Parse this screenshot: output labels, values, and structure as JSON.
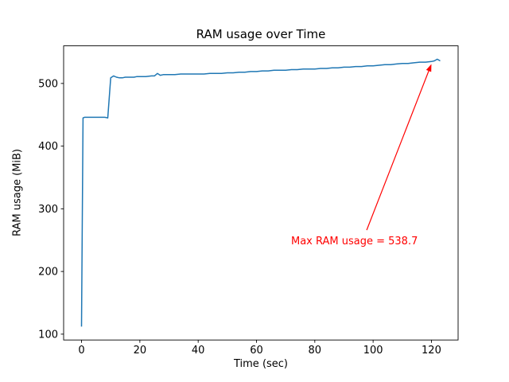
{
  "chart_data": {
    "type": "line",
    "title": "RAM usage over Time",
    "xlabel": "Time (sec)",
    "ylabel": "RAM usage (MiB)",
    "xlim": [
      -6.15,
      129.15
    ],
    "ylim": [
      90.7,
      560
    ],
    "x_ticks": [
      0,
      20,
      40,
      60,
      80,
      100,
      120
    ],
    "y_ticks": [
      100,
      200,
      300,
      400,
      500
    ],
    "grid": false,
    "line_color": "#1f77b4",
    "annotation": {
      "text": "Max RAM usage = 538.7",
      "color": "#ff0000",
      "arrow_from": [
        97.8,
        266
      ],
      "arrow_to": [
        120.0,
        531
      ]
    },
    "series": [
      {
        "name": "RAM usage",
        "points": [
          [
            0,
            112
          ],
          [
            0.5,
            445
          ],
          [
            1,
            446
          ],
          [
            2,
            446
          ],
          [
            3,
            446
          ],
          [
            4,
            446
          ],
          [
            5,
            446
          ],
          [
            6,
            446
          ],
          [
            7,
            446
          ],
          [
            8,
            446
          ],
          [
            9,
            445
          ],
          [
            10,
            509
          ],
          [
            11,
            512
          ],
          [
            12,
            510
          ],
          [
            13,
            509
          ],
          [
            14,
            509
          ],
          [
            15,
            510
          ],
          [
            16,
            510
          ],
          [
            17,
            510
          ],
          [
            18,
            510
          ],
          [
            19,
            511
          ],
          [
            20,
            511
          ],
          [
            22,
            511
          ],
          [
            24,
            512
          ],
          [
            25,
            512
          ],
          [
            26,
            516
          ],
          [
            27,
            513
          ],
          [
            28,
            514
          ],
          [
            30,
            514
          ],
          [
            32,
            514
          ],
          [
            34,
            515
          ],
          [
            36,
            515
          ],
          [
            38,
            515
          ],
          [
            40,
            515
          ],
          [
            42,
            515
          ],
          [
            44,
            516
          ],
          [
            46,
            516
          ],
          [
            48,
            516
          ],
          [
            50,
            517
          ],
          [
            52,
            517
          ],
          [
            54,
            518
          ],
          [
            56,
            518
          ],
          [
            58,
            519
          ],
          [
            60,
            519
          ],
          [
            62,
            520
          ],
          [
            64,
            520
          ],
          [
            66,
            521
          ],
          [
            68,
            521
          ],
          [
            70,
            521
          ],
          [
            72,
            522
          ],
          [
            74,
            522
          ],
          [
            76,
            523
          ],
          [
            78,
            523
          ],
          [
            80,
            523
          ],
          [
            82,
            524
          ],
          [
            84,
            524
          ],
          [
            86,
            525
          ],
          [
            88,
            525
          ],
          [
            90,
            526
          ],
          [
            92,
            526
          ],
          [
            94,
            527
          ],
          [
            96,
            527
          ],
          [
            98,
            528
          ],
          [
            100,
            528
          ],
          [
            102,
            529
          ],
          [
            104,
            530
          ],
          [
            106,
            530
          ],
          [
            108,
            531
          ],
          [
            110,
            532
          ],
          [
            112,
            532
          ],
          [
            114,
            533
          ],
          [
            116,
            534
          ],
          [
            118,
            534
          ],
          [
            120,
            535
          ],
          [
            121,
            536
          ],
          [
            122,
            538.7
          ],
          [
            123,
            536
          ]
        ]
      }
    ]
  }
}
